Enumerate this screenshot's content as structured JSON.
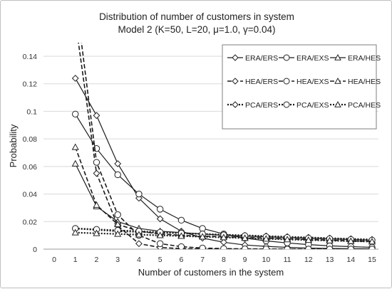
{
  "chart_data": {
    "type": "line",
    "title": [
      "Distribution of number of customers in system",
      "Model 2 (K=50, L=20, μ=1.0, γ=0.04)"
    ],
    "xlabel": "Number of customers in the system",
    "ylabel": "Probability",
    "xlim": [
      0,
      15
    ],
    "ylim": [
      0,
      0.14
    ],
    "x_ticks": [
      "0",
      "1",
      "2",
      "3",
      "4",
      "5",
      "6",
      "7",
      "8",
      "9",
      "10",
      "11",
      "12",
      "13",
      "14",
      "15"
    ],
    "y_ticks": [
      "0",
      "0.02",
      "0.04",
      "0.06",
      "0.08",
      "0.1",
      "0.12",
      "0.14"
    ],
    "grid": "horizontal",
    "legend_position": "top-right",
    "x": [
      1,
      2,
      3,
      4,
      5,
      6,
      7,
      8,
      9,
      10,
      11,
      12,
      13,
      14,
      15
    ],
    "series": [
      {
        "name": "ERA/ERS",
        "line": "solid",
        "marker": "diamond",
        "values": [
          0.124,
          0.097,
          0.062,
          0.037,
          0.022,
          0.013,
          0.008,
          0.005,
          0.003,
          0.002,
          0.0013,
          0.0008,
          0.0005,
          0.0003,
          0.0002
        ]
      },
      {
        "name": "ERA/EXS",
        "line": "solid",
        "marker": "circle",
        "values": [
          0.098,
          0.073,
          0.054,
          0.04,
          0.029,
          0.021,
          0.015,
          0.011,
          0.008,
          0.006,
          0.0045,
          0.0033,
          0.0024,
          0.0018,
          0.0013
        ]
      },
      {
        "name": "ERA/HES",
        "line": "solid",
        "marker": "triangle",
        "values": [
          0.062,
          0.031,
          0.02,
          0.015,
          0.013,
          0.012,
          0.011,
          0.01,
          0.0095,
          0.009,
          0.0085,
          0.008,
          0.0075,
          0.007,
          0.0065
        ]
      },
      {
        "name": "HEA/ERS",
        "line": "dashed",
        "marker": "diamond",
        "values": [
          0.166,
          0.055,
          0.017,
          0.004,
          0.0012,
          0.0004,
          0.0001,
          0.0,
          0.0,
          0.0,
          0.0,
          0.0,
          0.0,
          0.0,
          0.0
        ]
      },
      {
        "name": "HEA/EXS",
        "line": "dashed",
        "marker": "circle",
        "values": [
          0.185,
          0.063,
          0.025,
          0.01,
          0.004,
          0.0018,
          0.0008,
          0.0004,
          0.0002,
          0.0001,
          0.0,
          0.0,
          0.0,
          0.0,
          0.0
        ]
      },
      {
        "name": "HEA/HES",
        "line": "dashed",
        "marker": "triangle",
        "values": [
          0.074,
          0.032,
          0.018,
          0.013,
          0.011,
          0.01,
          0.0095,
          0.009,
          0.0085,
          0.008,
          0.0075,
          0.007,
          0.0065,
          0.006,
          0.0055
        ]
      },
      {
        "name": "PCA/ERS",
        "line": "dotted",
        "marker": "diamond",
        "values": [
          0.015,
          0.014,
          0.013,
          0.0125,
          0.012,
          0.0115,
          0.011,
          0.0105,
          0.01,
          0.0095,
          0.009,
          0.0085,
          0.008,
          0.0075,
          0.007
        ]
      },
      {
        "name": "PCA/EXS",
        "line": "dotted",
        "marker": "circle",
        "values": [
          0.015,
          0.0143,
          0.0136,
          0.013,
          0.0123,
          0.0116,
          0.011,
          0.0103,
          0.0097,
          0.009,
          0.0085,
          0.008,
          0.0075,
          0.007,
          0.0065
        ]
      },
      {
        "name": "PCA/HES",
        "line": "dotted",
        "marker": "triangle",
        "values": [
          0.012,
          0.0115,
          0.011,
          0.0105,
          0.01,
          0.0095,
          0.009,
          0.0085,
          0.008,
          0.0075,
          0.007,
          0.0066,
          0.0062,
          0.0058,
          0.0055
        ]
      }
    ]
  }
}
